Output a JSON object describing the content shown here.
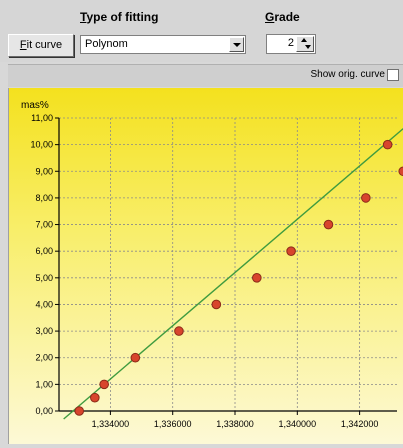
{
  "toolbar": {
    "type_of_fitting_label_first": "T",
    "type_of_fitting_label_rest": "ype of fitting",
    "grade_label_first": "G",
    "grade_label_rest": "rade",
    "fit_curve_first": "F",
    "fit_curve_rest": "it curve",
    "fitting_selected": "Polynom",
    "grade_value": "2"
  },
  "options": {
    "show_orig_curve_label": "Show orig. curve",
    "show_orig_curve_checked": false
  },
  "colors": {
    "point_fill": "#d8452d",
    "point_stroke": "#8b2a18",
    "fit_line": "#3f9b3f"
  },
  "chart_data": {
    "type": "scatter",
    "title": "",
    "xlabel": "",
    "ylabel": "mas%",
    "xlim": [
      1.33235,
      1.3432
    ],
    "ylim": [
      0,
      11
    ],
    "grid": true,
    "xticks": [
      1.334,
      1.336,
      1.338,
      1.34,
      1.342
    ],
    "xtick_labels": [
      "1,334000",
      "1,336000",
      "1,338000",
      "1,340000",
      "1,342000"
    ],
    "yticks": [
      0,
      1,
      2,
      3,
      4,
      5,
      6,
      7,
      8,
      9,
      10,
      11
    ],
    "ytick_labels": [
      "0,00",
      "1,00",
      "2,00",
      "3,00",
      "4,00",
      "5,00",
      "6,00",
      "7,00",
      "8,00",
      "9,00",
      "10,00",
      "11,00"
    ],
    "series": [
      {
        "x": [
          1.333,
          1.3335,
          1.3338,
          1.3348,
          1.3362,
          1.3374,
          1.3387,
          1.3398,
          1.341,
          1.3422,
          1.3434
        ],
        "y": [
          0,
          0.5,
          1,
          2,
          3,
          4,
          5,
          6,
          7,
          8,
          9
        ]
      },
      {
        "x": [
          1.3429
        ],
        "y": [
          10
        ]
      }
    ],
    "fit_line": {
      "x": [
        1.3325,
        1.3434
      ],
      "y": [
        -0.3,
        10.6
      ]
    }
  }
}
